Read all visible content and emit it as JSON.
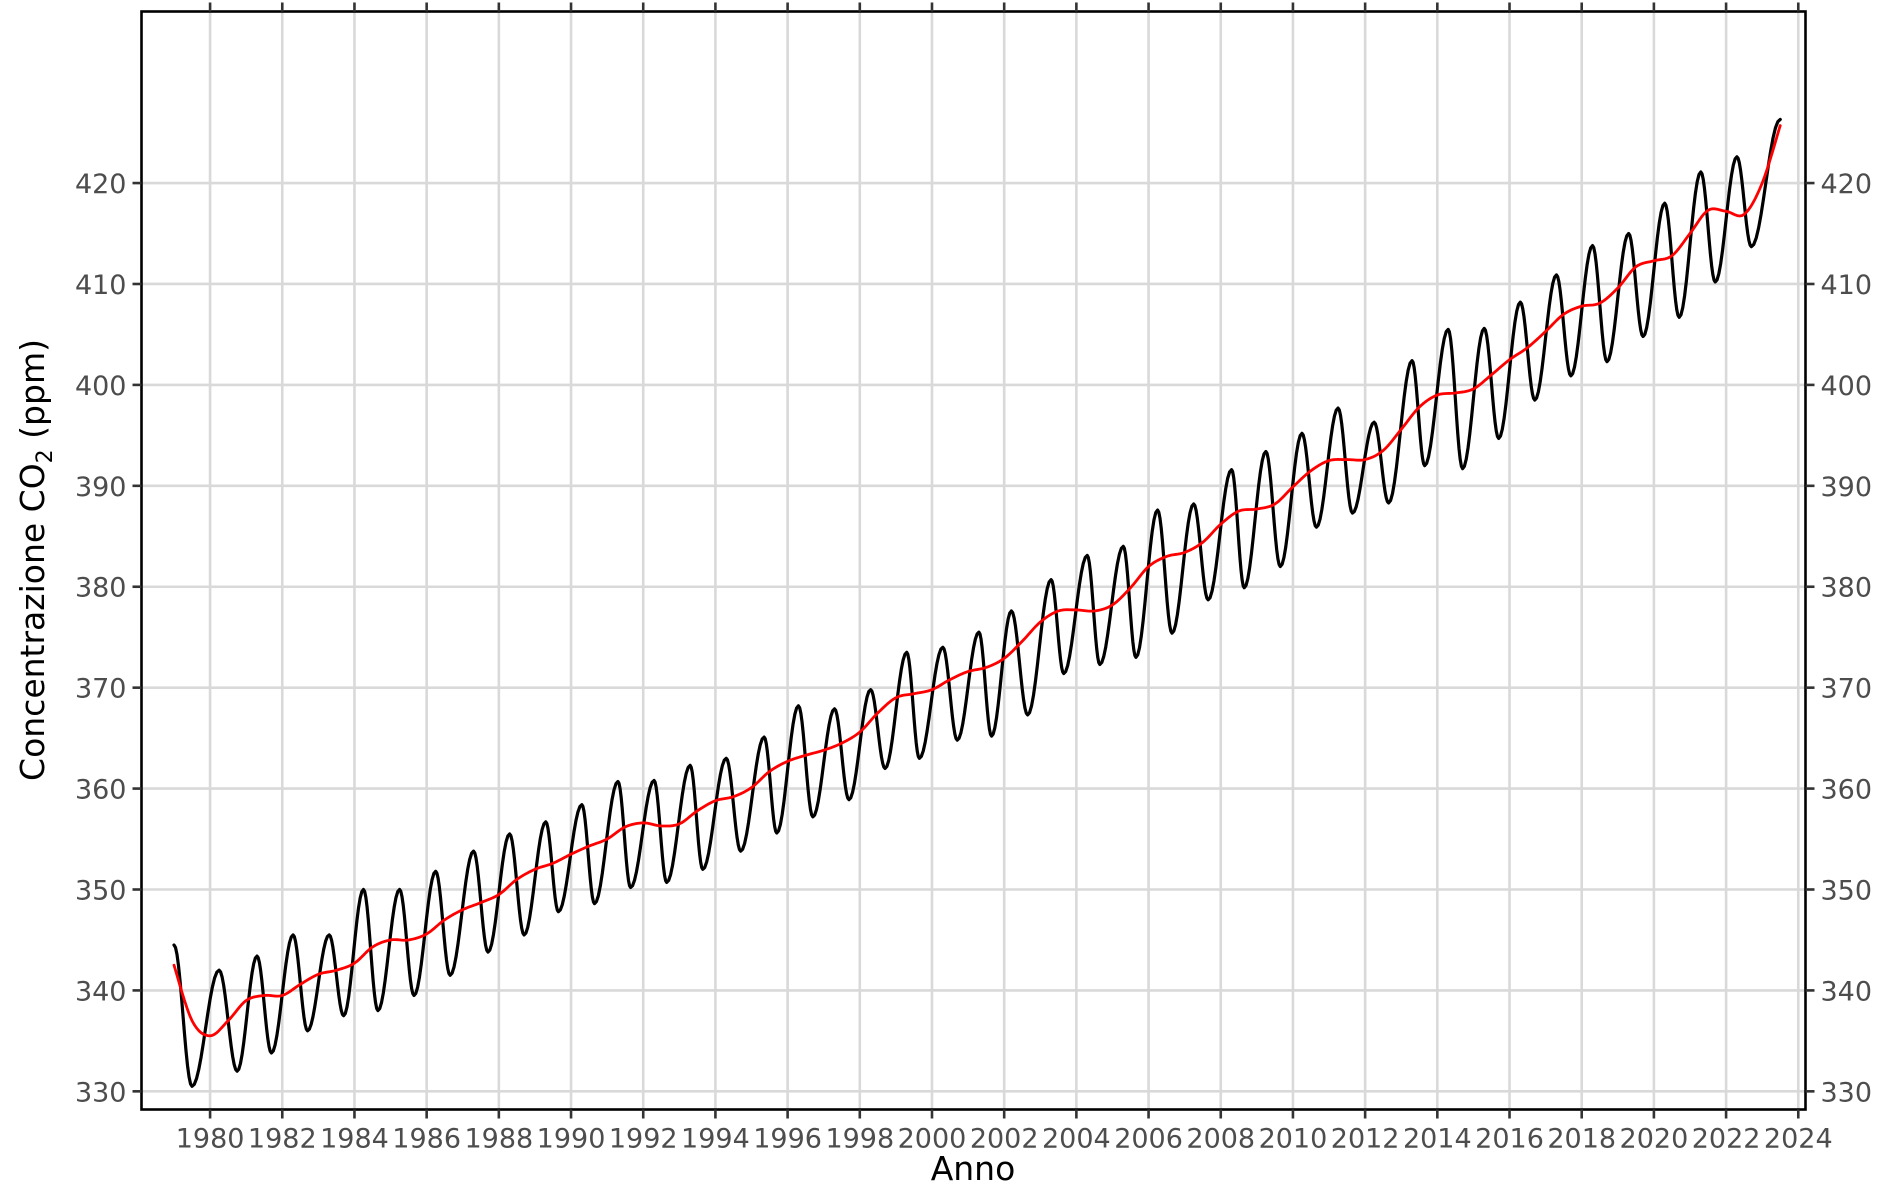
{
  "chart_data": {
    "type": "line",
    "xlabel": "Anno",
    "ylabel_parts": [
      "Concentrazione CO",
      "2",
      " (ppm)"
    ],
    "xlim": [
      1978.1,
      2024.2
    ],
    "ylim": [
      328.2,
      437.0
    ],
    "x_ticks": [
      "1980",
      "1982",
      "1984",
      "1986",
      "1988",
      "1990",
      "1992",
      "1994",
      "1996",
      "1998",
      "2000",
      "2002",
      "2004",
      "2006",
      "2008",
      "2010",
      "2012",
      "2014",
      "2016",
      "2018",
      "2020",
      "2022",
      "2024"
    ],
    "y_ticks": [
      "330",
      "340",
      "350",
      "360",
      "370",
      "380",
      "390",
      "400",
      "410",
      "420"
    ],
    "grid": true,
    "secondary_y_axis": true,
    "x_start": 1979.0,
    "x_end": 2023.5,
    "series": [
      {
        "kind": "monthly",
        "color": "#000000",
        "extrema": [
          [
            1979.0,
            344.5
          ],
          [
            1979.5,
            330.5
          ],
          [
            1980.25,
            342.0
          ],
          [
            1980.75,
            332.0
          ],
          [
            1981.3,
            343.4
          ],
          [
            1981.7,
            333.8
          ],
          [
            1982.3,
            345.5
          ],
          [
            1982.7,
            336.0
          ],
          [
            1983.3,
            345.5
          ],
          [
            1983.7,
            337.5
          ],
          [
            1984.25,
            350.0
          ],
          [
            1984.65,
            338.0
          ],
          [
            1985.25,
            350.0
          ],
          [
            1985.65,
            339.5
          ],
          [
            1986.25,
            351.8
          ],
          [
            1986.65,
            341.5
          ],
          [
            1987.3,
            353.8
          ],
          [
            1987.7,
            343.8
          ],
          [
            1988.3,
            355.5
          ],
          [
            1988.7,
            345.5
          ],
          [
            1989.3,
            356.7
          ],
          [
            1989.65,
            347.8
          ],
          [
            1990.3,
            358.4
          ],
          [
            1990.65,
            348.6
          ],
          [
            1991.3,
            360.7
          ],
          [
            1991.65,
            350.2
          ],
          [
            1992.3,
            360.8
          ],
          [
            1992.65,
            350.7
          ],
          [
            1993.3,
            362.3
          ],
          [
            1993.65,
            352.0
          ],
          [
            1994.3,
            363.0
          ],
          [
            1994.7,
            353.8
          ],
          [
            1995.35,
            365.1
          ],
          [
            1995.7,
            355.6
          ],
          [
            1996.3,
            368.2
          ],
          [
            1996.7,
            357.2
          ],
          [
            1997.3,
            367.9
          ],
          [
            1997.7,
            358.9
          ],
          [
            1998.3,
            369.8
          ],
          [
            1998.7,
            362.0
          ],
          [
            1999.3,
            373.5
          ],
          [
            1999.65,
            363.0
          ],
          [
            2000.3,
            374.0
          ],
          [
            2000.7,
            364.8
          ],
          [
            2001.3,
            375.5
          ],
          [
            2001.65,
            365.2
          ],
          [
            2002.2,
            377.6
          ],
          [
            2002.65,
            367.3
          ],
          [
            2003.3,
            380.7
          ],
          [
            2003.65,
            371.4
          ],
          [
            2004.3,
            383.1
          ],
          [
            2004.65,
            372.3
          ],
          [
            2005.3,
            384.0
          ],
          [
            2005.65,
            373.0
          ],
          [
            2006.25,
            387.6
          ],
          [
            2006.65,
            375.4
          ],
          [
            2007.25,
            388.2
          ],
          [
            2007.65,
            378.7
          ],
          [
            2008.3,
            391.6
          ],
          [
            2008.65,
            379.9
          ],
          [
            2009.25,
            393.4
          ],
          [
            2009.65,
            382.0
          ],
          [
            2010.25,
            395.2
          ],
          [
            2010.65,
            385.9
          ],
          [
            2011.25,
            397.7
          ],
          [
            2011.65,
            387.3
          ],
          [
            2012.25,
            396.3
          ],
          [
            2012.65,
            388.3
          ],
          [
            2013.3,
            402.4
          ],
          [
            2013.65,
            392.0
          ],
          [
            2014.3,
            405.5
          ],
          [
            2014.7,
            391.7
          ],
          [
            2015.3,
            405.6
          ],
          [
            2015.7,
            394.7
          ],
          [
            2016.3,
            408.2
          ],
          [
            2016.7,
            398.5
          ],
          [
            2017.3,
            410.9
          ],
          [
            2017.7,
            400.9
          ],
          [
            2018.3,
            413.8
          ],
          [
            2018.7,
            402.3
          ],
          [
            2019.3,
            415.0
          ],
          [
            2019.7,
            404.8
          ],
          [
            2020.3,
            418.0
          ],
          [
            2020.7,
            406.7
          ],
          [
            2021.3,
            421.1
          ],
          [
            2021.7,
            410.2
          ],
          [
            2022.3,
            422.6
          ],
          [
            2022.7,
            413.7
          ],
          [
            2023.5,
            426.3
          ]
        ]
      },
      {
        "kind": "trend",
        "color": "#ff0000",
        "points": [
          [
            1979.0,
            342.5
          ],
          [
            1979.5,
            337.0
          ],
          [
            1980.0,
            335.5
          ],
          [
            1980.5,
            337.0
          ],
          [
            1981.0,
            339.0
          ],
          [
            1981.5,
            339.5
          ],
          [
            1982.0,
            339.5
          ],
          [
            1982.5,
            340.6
          ],
          [
            1983.0,
            341.6
          ],
          [
            1983.5,
            342.0
          ],
          [
            1984.0,
            342.7
          ],
          [
            1984.5,
            344.3
          ],
          [
            1985.0,
            345.0
          ],
          [
            1985.5,
            345.0
          ],
          [
            1986.0,
            345.6
          ],
          [
            1986.5,
            347.0
          ],
          [
            1987.0,
            348.0
          ],
          [
            1987.5,
            348.7
          ],
          [
            1988.0,
            349.5
          ],
          [
            1988.5,
            351.0
          ],
          [
            1989.0,
            352.0
          ],
          [
            1989.5,
            352.6
          ],
          [
            1990.0,
            353.5
          ],
          [
            1990.5,
            354.3
          ],
          [
            1991.0,
            355.0
          ],
          [
            1991.5,
            356.2
          ],
          [
            1992.0,
            356.6
          ],
          [
            1992.5,
            356.3
          ],
          [
            1993.0,
            356.5
          ],
          [
            1993.5,
            357.8
          ],
          [
            1994.0,
            358.8
          ],
          [
            1994.5,
            359.2
          ],
          [
            1995.0,
            360.1
          ],
          [
            1995.5,
            361.7
          ],
          [
            1996.0,
            362.7
          ],
          [
            1996.5,
            363.3
          ],
          [
            1997.0,
            363.8
          ],
          [
            1997.5,
            364.5
          ],
          [
            1998.0,
            365.6
          ],
          [
            1998.5,
            367.5
          ],
          [
            1999.0,
            369.0
          ],
          [
            1999.5,
            369.4
          ],
          [
            2000.0,
            369.8
          ],
          [
            2000.5,
            370.8
          ],
          [
            2001.0,
            371.6
          ],
          [
            2001.5,
            372.0
          ],
          [
            2002.0,
            372.9
          ],
          [
            2002.5,
            374.6
          ],
          [
            2003.0,
            376.5
          ],
          [
            2003.5,
            377.6
          ],
          [
            2004.0,
            377.7
          ],
          [
            2004.5,
            377.6
          ],
          [
            2005.0,
            378.2
          ],
          [
            2005.5,
            379.9
          ],
          [
            2006.0,
            382.0
          ],
          [
            2006.5,
            383.0
          ],
          [
            2007.0,
            383.4
          ],
          [
            2007.5,
            384.4
          ],
          [
            2008.0,
            386.2
          ],
          [
            2008.5,
            387.5
          ],
          [
            2009.0,
            387.7
          ],
          [
            2009.5,
            388.2
          ],
          [
            2010.0,
            389.9
          ],
          [
            2010.5,
            391.5
          ],
          [
            2011.0,
            392.5
          ],
          [
            2011.5,
            392.6
          ],
          [
            2012.0,
            392.6
          ],
          [
            2012.5,
            393.5
          ],
          [
            2013.0,
            395.6
          ],
          [
            2013.5,
            397.8
          ],
          [
            2014.0,
            399.0
          ],
          [
            2014.5,
            399.2
          ],
          [
            2015.0,
            399.6
          ],
          [
            2015.5,
            401.0
          ],
          [
            2016.0,
            402.5
          ],
          [
            2016.5,
            403.7
          ],
          [
            2017.0,
            405.3
          ],
          [
            2017.5,
            407.0
          ],
          [
            2018.0,
            407.8
          ],
          [
            2018.5,
            408.1
          ],
          [
            2019.0,
            409.6
          ],
          [
            2019.5,
            411.7
          ],
          [
            2020.0,
            412.3
          ],
          [
            2020.5,
            412.8
          ],
          [
            2021.0,
            415.0
          ],
          [
            2021.5,
            417.3
          ],
          [
            2022.0,
            417.2
          ],
          [
            2022.5,
            416.9
          ],
          [
            2023.0,
            420.0
          ],
          [
            2023.5,
            425.7
          ]
        ]
      }
    ]
  }
}
